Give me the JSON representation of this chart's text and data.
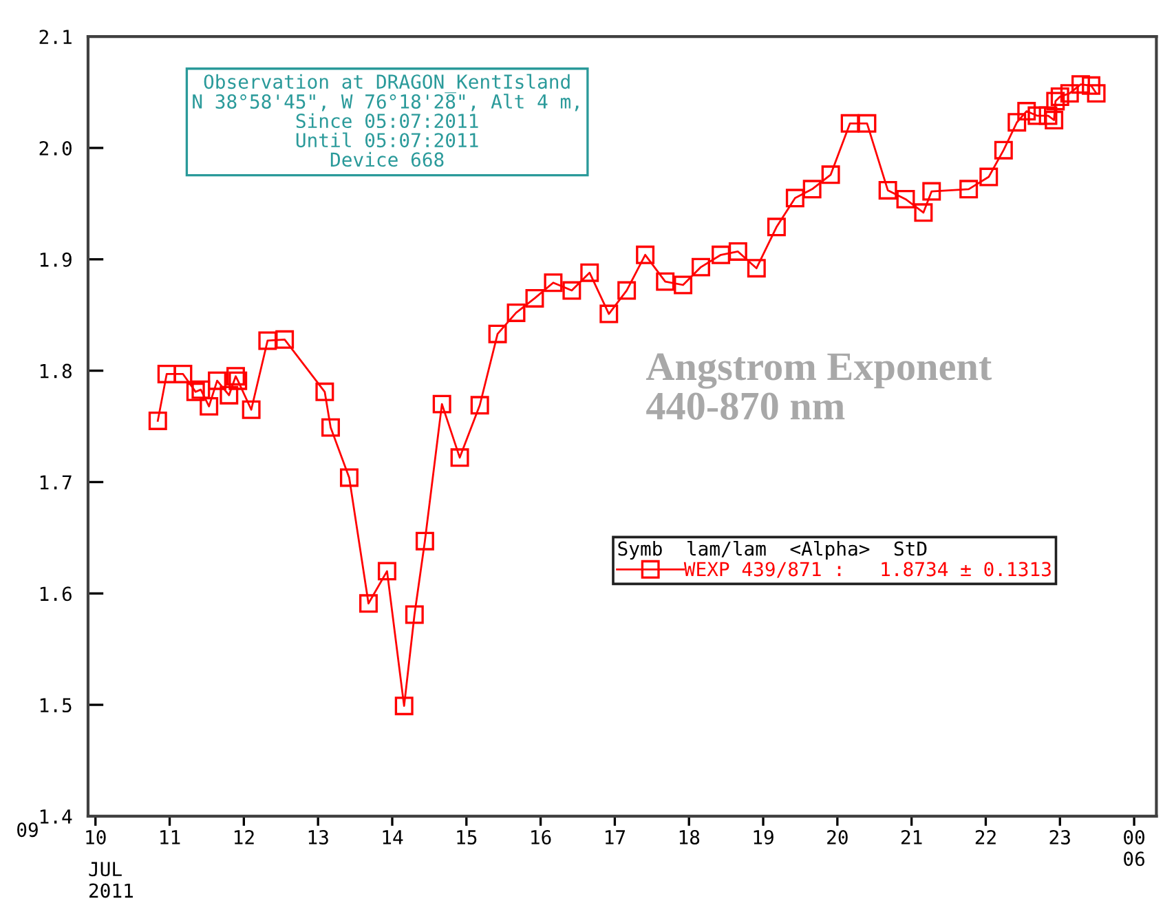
{
  "chart_data": {
    "type": "line",
    "title": "Angstrom Exponent\n440-870 nm",
    "xlabel": "JUL\n2011",
    "legend_title": "Symb  lam/lam  <Alpha>  StD",
    "annotations": [
      "Observation at DRAGON_KentIsland\nN 38°58'45\", W 76°18'28\", Alt 4 m,\nSince 05:07:2011\nUntil 05:07:2011\nDevice 668",
      "09"
    ],
    "series": [
      {
        "name": "WEXP 439/871 :   1.8734 ± 0.1313",
        "color": "#ff0000",
        "x": [
          10.84,
          10.96,
          11.18,
          11.35,
          11.42,
          11.53,
          11.64,
          11.8,
          11.89,
          11.92,
          12.1,
          12.32,
          12.55,
          13.09,
          13.17,
          13.42,
          13.68,
          13.93,
          14.16,
          14.3,
          14.44,
          14.67,
          14.91,
          15.18,
          15.42,
          15.67,
          15.92,
          16.17,
          16.42,
          16.66,
          16.92,
          17.16,
          17.41,
          17.68,
          17.92,
          18.16,
          18.43,
          18.66,
          18.91,
          19.18,
          19.43,
          19.66,
          19.91,
          20.17,
          20.4,
          20.68,
          20.92,
          21.16,
          21.27,
          21.77,
          22.04,
          22.24,
          22.42,
          22.55,
          22.69,
          22.84,
          22.92,
          22.94,
          23.0,
          23.13,
          23.28,
          23.42,
          23.49
        ],
        "values": [
          1.755,
          1.797,
          1.797,
          1.781,
          1.783,
          1.768,
          1.791,
          1.778,
          1.795,
          1.791,
          1.765,
          1.827,
          1.828,
          1.781,
          1.749,
          1.704,
          1.591,
          1.62,
          1.499,
          1.581,
          1.647,
          1.77,
          1.722,
          1.769,
          1.833,
          1.852,
          1.865,
          1.879,
          1.872,
          1.888,
          1.851,
          1.872,
          1.904,
          1.88,
          1.877,
          1.893,
          1.904,
          1.907,
          1.892,
          1.929,
          1.955,
          1.963,
          1.976,
          2.022,
          2.022,
          1.962,
          1.954,
          1.942,
          1.961,
          1.963,
          1.974,
          1.998,
          2.023,
          2.033,
          2.029,
          2.029,
          2.025,
          2.042,
          2.046,
          2.049,
          2.057,
          2.056,
          2.049
        ]
      }
    ],
    "xlim": [
      9.9,
      24.3
    ],
    "xticks": [
      10,
      11,
      12,
      13,
      14,
      15,
      16,
      17,
      18,
      19,
      20,
      21,
      22,
      23,
      {
        "value": 24,
        "label": "00\n06"
      }
    ],
    "ylim": [
      1.4,
      2.1
    ],
    "yticks": [
      1.4,
      1.5,
      1.6,
      1.7,
      1.8,
      1.9,
      {
        "value": 2,
        "label": "2.0"
      },
      2.1
    ],
    "marker": "square",
    "line_style": "solid",
    "legend": "bottom right"
  }
}
